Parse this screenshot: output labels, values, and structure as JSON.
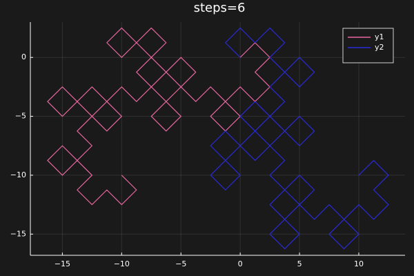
{
  "chart_data": {
    "type": "line",
    "title": "steps=6",
    "xlim": [
      -17.7,
      13.9
    ],
    "ylim": [
      -16.8,
      3.0
    ],
    "xticks": [
      {
        "value": -15,
        "label": "−15"
      },
      {
        "value": -10,
        "label": "−10"
      },
      {
        "value": -5,
        "label": "−5"
      },
      0,
      5,
      10
    ],
    "yticks": [
      {
        "value": -15,
        "label": "−15"
      },
      {
        "value": -10,
        "label": "−10"
      },
      {
        "value": -5,
        "label": "−5"
      },
      0
    ],
    "grid": true,
    "legend": "top-right",
    "series": [
      {
        "name": "y1",
        "color": "#e8679f",
        "x": [
          -10,
          -8.75,
          -10,
          -11.25,
          -12.5,
          -13.75,
          -12.5,
          -13.75,
          -15,
          -16.25,
          -15,
          -13.75,
          -12.5,
          -13.75,
          -12.5,
          -13.75,
          -15,
          -16.25,
          -15,
          -13.75,
          -12.5,
          -11.25,
          -12.5,
          -11.25,
          -10,
          -11.25,
          -10,
          -8.75,
          -7.5,
          -8.75,
          -7.5,
          -8.75,
          -10,
          -11.25,
          -10,
          -8.75,
          -7.5,
          -6.25,
          -7.5,
          -6.25,
          -5,
          -3.75,
          -5,
          -6.25,
          -7.5,
          -6.25,
          -7.5,
          -6.25,
          -5,
          -6.25,
          -5,
          -3.75,
          -2.5,
          -1.25,
          -2.5,
          -1.25,
          0,
          -1.25,
          0,
          1.25,
          2.5,
          1.25,
          2.5,
          1.25,
          0
        ],
        "values": [
          -10,
          -11.25,
          -12.5,
          -11.25,
          -12.5,
          -11.25,
          -10,
          -8.75,
          -10,
          -8.75,
          -7.5,
          -8.75,
          -7.5,
          -6.25,
          -5,
          -3.75,
          -5,
          -3.75,
          -2.5,
          -3.75,
          -2.5,
          -3.75,
          -5,
          -6.25,
          -5,
          -3.75,
          -2.5,
          -3.75,
          -2.5,
          -1.25,
          0,
          1.25,
          0,
          1.25,
          2.5,
          1.25,
          2.5,
          1.25,
          0,
          -1.25,
          0,
          -1.25,
          -2.5,
          -1.25,
          -2.5,
          -3.75,
          -5,
          -6.25,
          -5,
          -3.75,
          -2.5,
          -3.75,
          -2.5,
          -3.75,
          -5,
          -6.25,
          -5,
          -3.75,
          -2.5,
          -3.75,
          -2.5,
          -1.25,
          0,
          1.25,
          0
        ]
      },
      {
        "name": "y2",
        "color": "#2a2ad8",
        "x": [
          10,
          11.25,
          12.5,
          11.25,
          12.5,
          11.25,
          10,
          8.75,
          10,
          8.75,
          7.5,
          8.75,
          7.5,
          6.25,
          5,
          3.75,
          5,
          3.75,
          2.5,
          3.75,
          2.5,
          3.75,
          5,
          6.25,
          5,
          3.75,
          2.5,
          3.75,
          2.5,
          1.25,
          0,
          -1.25,
          0,
          -1.25,
          -2.5,
          -1.25,
          -2.5,
          -1.25,
          0,
          1.25,
          0,
          1.25,
          2.5,
          1.25,
          2.5,
          3.75,
          5,
          6.25,
          5,
          3.75,
          2.5,
          3.75,
          2.5,
          3.75,
          5,
          6.25,
          5,
          3.75,
          2.5,
          3.75,
          2.5,
          1.25,
          0,
          -1.25,
          0
        ],
        "values": [
          -10,
          -8.75,
          -10,
          -11.25,
          -12.5,
          -13.75,
          -12.5,
          -13.75,
          -15,
          -16.25,
          -15,
          -13.75,
          -12.5,
          -13.75,
          -12.5,
          -13.75,
          -15,
          -16.25,
          -15,
          -13.75,
          -12.5,
          -11.25,
          -12.5,
          -11.25,
          -10,
          -11.25,
          -10,
          -8.75,
          -7.5,
          -8.75,
          -7.5,
          -8.75,
          -10,
          -11.25,
          -10,
          -8.75,
          -7.5,
          -6.25,
          -7.5,
          -6.25,
          -5,
          -3.75,
          -5,
          -6.25,
          -7.5,
          -6.25,
          -7.5,
          -6.25,
          -5,
          -6.25,
          -5,
          -3.75,
          -2.5,
          -1.25,
          -2.5,
          -1.25,
          0,
          -1.25,
          0,
          1.25,
          2.5,
          1.25,
          2.5,
          1.25,
          0
        ]
      }
    ]
  }
}
